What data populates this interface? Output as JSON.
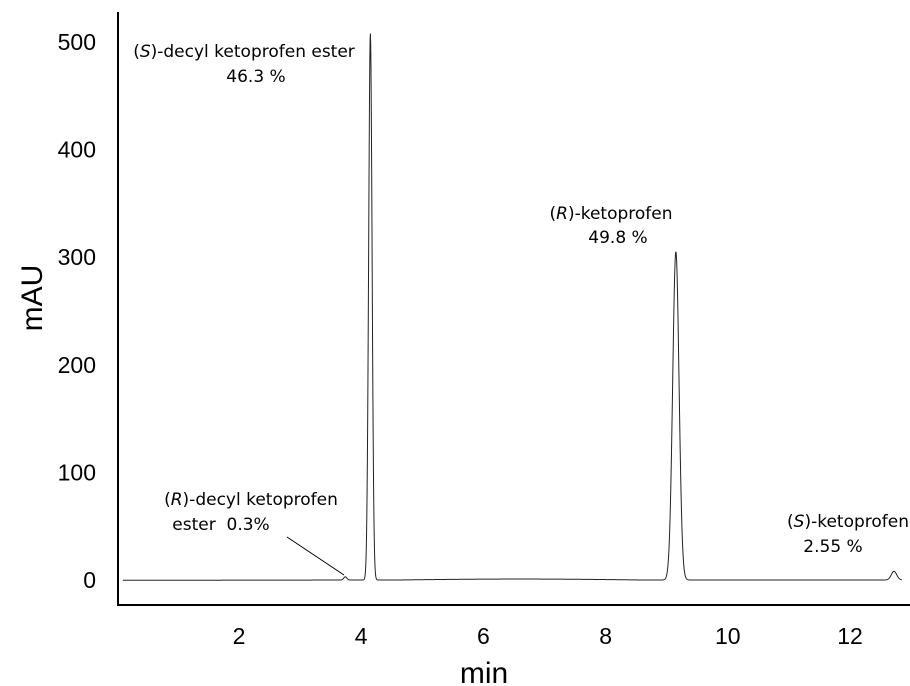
{
  "chart_data": {
    "type": "line",
    "xlabel": "min",
    "ylabel": "mAU",
    "xlim": [
      0.1,
      12.85
    ],
    "ylim": [
      -25,
      525
    ],
    "xticks": [
      2,
      4,
      6,
      8,
      10,
      12
    ],
    "yticks": [
      0,
      100,
      200,
      300,
      400,
      500
    ],
    "grid": false,
    "baseline": 0,
    "peaks": [
      {
        "name": "(R)-decyl ketoprofen ester",
        "rt": 3.74,
        "height": 3,
        "width": 0.025,
        "area_percent": "0.3%"
      },
      {
        "name": "(S)-decyl ketoprofen ester",
        "rt": 4.15,
        "height": 508,
        "width": 0.028,
        "area_percent": "46.3 %"
      },
      {
        "name": "(R)-ketoprofen",
        "rt": 9.15,
        "height": 305,
        "width": 0.052,
        "area_percent": "49.8 %"
      },
      {
        "name": "(S)-ketoprofen",
        "rt": 12.72,
        "height": 8,
        "width": 0.045,
        "area_percent": "2.55 %"
      }
    ],
    "annotations": [
      {
        "prefix": "(",
        "italic": "S",
        "rest": ")-decyl ketoprofen ester",
        "line2": "46.3 %"
      },
      {
        "prefix": "(",
        "italic": "R",
        "rest": ")-ketoprofen",
        "line2": "49.8 %"
      },
      {
        "prefix": "(",
        "italic": "R",
        "rest": ")-decyl ketoprofen",
        "line2": "ester  0.3%"
      },
      {
        "prefix": "(",
        "italic": "S",
        "rest": ")-ketoprofen",
        "line2": "2.55 %"
      }
    ]
  }
}
